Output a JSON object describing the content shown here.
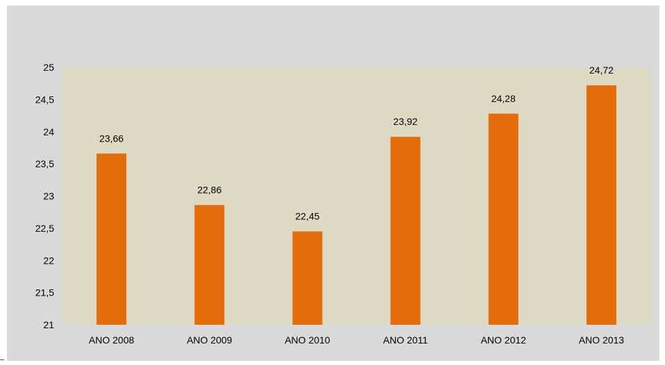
{
  "chart_data": {
    "type": "bar",
    "title": "",
    "xlabel": "",
    "ylabel": "",
    "categories": [
      "ANO 2008",
      "ANO 2009",
      "ANO 2010",
      "ANO 2011",
      "ANO 2012",
      "ANO 2013"
    ],
    "values": [
      23.66,
      22.86,
      22.45,
      23.92,
      24.28,
      24.72
    ],
    "value_labels": [
      "23,66",
      "22,86",
      "22,45",
      "23,92",
      "24,28",
      "24,72"
    ],
    "ylim": [
      21,
      25
    ],
    "y_ticks": [
      21,
      21.5,
      22,
      22.5,
      23,
      23.5,
      24,
      24.5,
      25
    ],
    "y_tick_labels": [
      "21",
      "21,5",
      "22",
      "22,5",
      "23",
      "23,5",
      "24",
      "24,5",
      "25"
    ],
    "grid": false,
    "legend": "none",
    "colors": {
      "bar": "#e46c0a",
      "plot_background": "#ddd9c3",
      "chart_background": "#d9d9d9",
      "text": "#000000"
    }
  }
}
